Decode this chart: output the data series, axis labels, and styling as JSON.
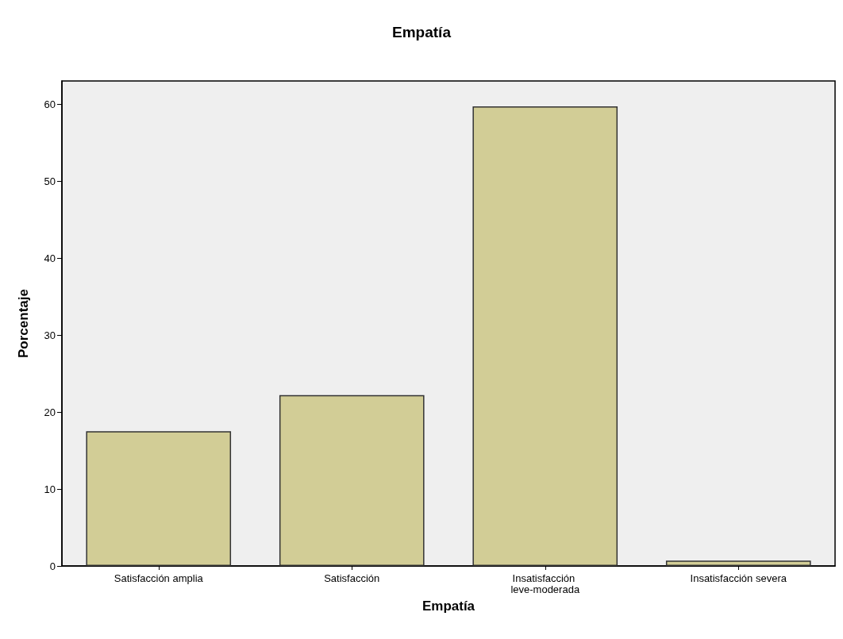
{
  "chart_data": {
    "type": "bar",
    "title": "Empatía",
    "xlabel": "Empatía",
    "ylabel": "Porcentaje",
    "categories": [
      "Satisfacción amplia",
      "Satisfacción",
      "Insatisfacción leve-moderada",
      "Insatisfacción severa"
    ],
    "values": [
      17.5,
      22.2,
      59.7,
      0.7
    ],
    "color": "#d2cd96",
    "ylim": [
      0,
      63
    ],
    "yticks": [
      0,
      10,
      20,
      30,
      40,
      50,
      60
    ],
    "grid": false
  }
}
